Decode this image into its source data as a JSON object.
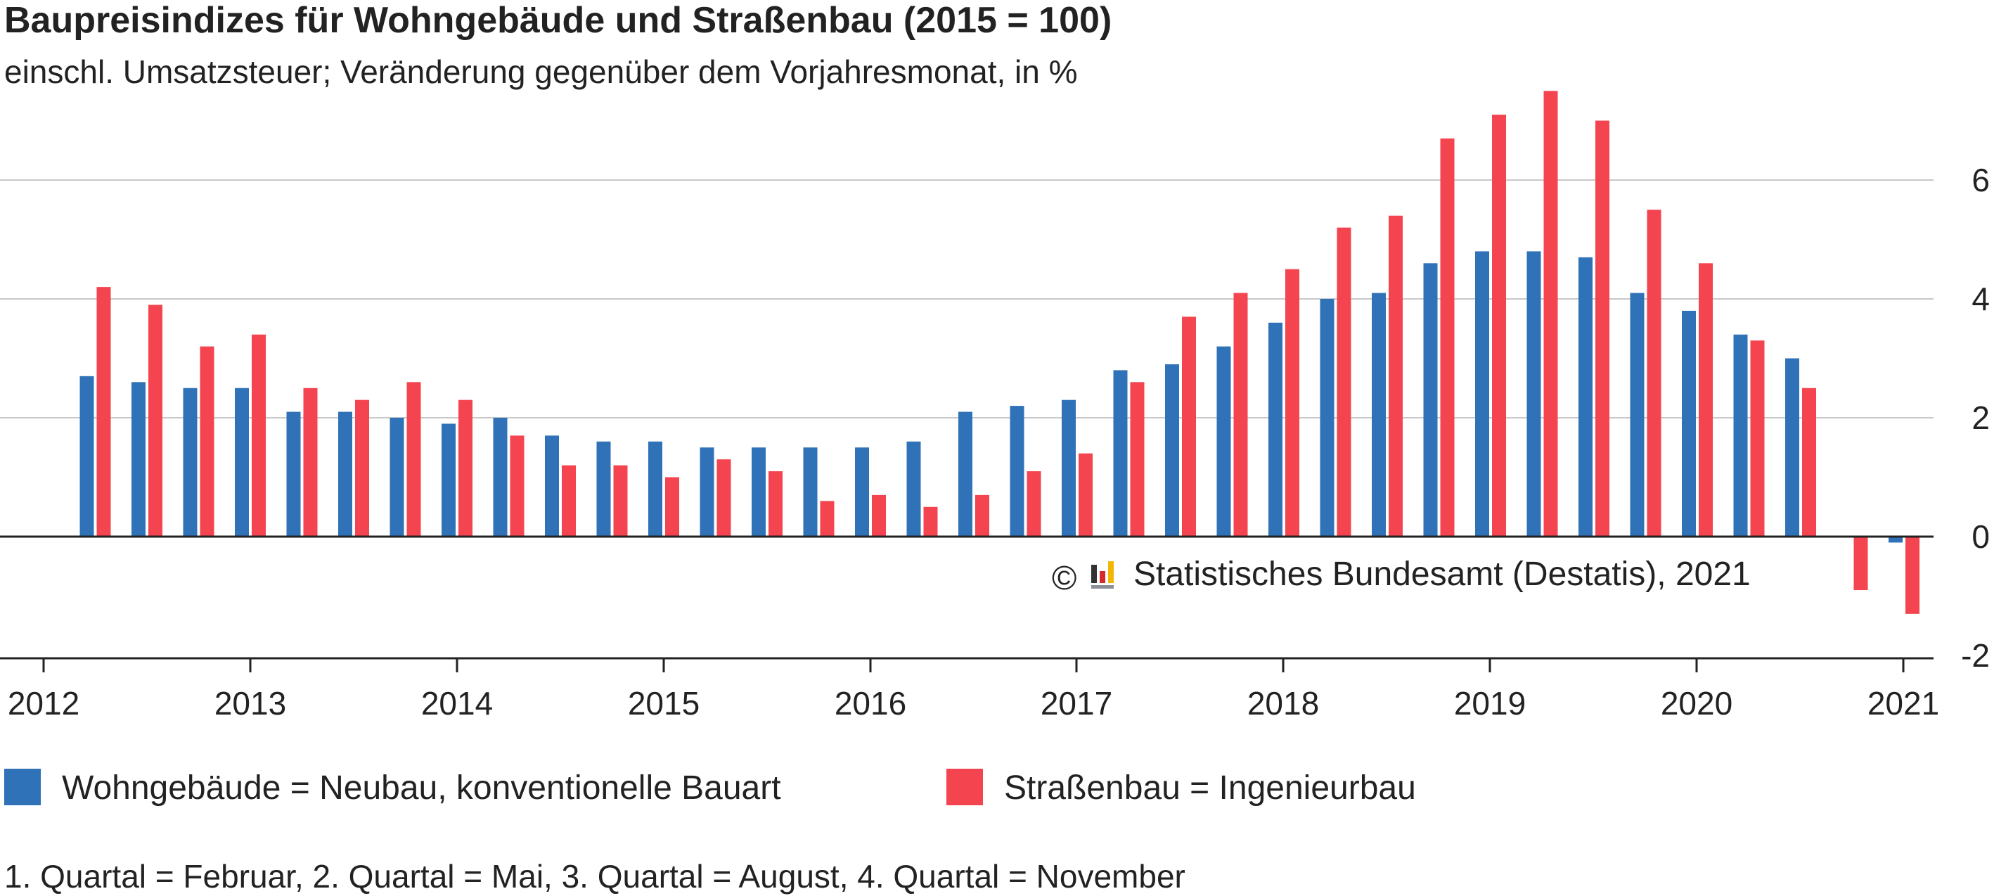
{
  "chart_data": {
    "type": "bar",
    "title": "Baupreisindizes für Wohngebäude und Straßenbau (2015 = 100)",
    "subtitle": "einschl. Umsatzsteuer; Veränderung gegenüber dem Vorjahresmonat, in %",
    "x_tick_labels": [
      "2012",
      "2013",
      "2014",
      "2015",
      "2016",
      "2017",
      "2018",
      "2019",
      "2020",
      "2021"
    ],
    "y_tick_labels": [
      "6",
      "4",
      "2",
      "0",
      "-2"
    ],
    "ylim": [
      -2,
      7.5
    ],
    "grid": true,
    "legend_position": "bottom",
    "categories": [
      "2012 Q2",
      "2012 Q3",
      "2012 Q4",
      "2013 Q1",
      "2013 Q2",
      "2013 Q3",
      "2013 Q4",
      "2014 Q1",
      "2014 Q2",
      "2014 Q3",
      "2014 Q4",
      "2015 Q1",
      "2015 Q2",
      "2015 Q3",
      "2015 Q4",
      "2016 Q1",
      "2016 Q2",
      "2016 Q3",
      "2016 Q4",
      "2017 Q1",
      "2017 Q2",
      "2017 Q3",
      "2017 Q4",
      "2018 Q1",
      "2018 Q2",
      "2018 Q3",
      "2018 Q4",
      "2019 Q1",
      "2019 Q2",
      "2019 Q3",
      "2019 Q4",
      "2020 Q1",
      "2020 Q2",
      "2020 Q3",
      "2020 Q4",
      "2021 Q1"
    ],
    "series": [
      {
        "name": "Wohngebäude = Neubau, konventionelle Bauart",
        "color": "#2f72b8",
        "values": [
          2.7,
          2.6,
          2.5,
          2.5,
          2.1,
          2.1,
          2.0,
          1.9,
          2.0,
          1.7,
          1.6,
          1.6,
          1.5,
          1.5,
          1.5,
          1.5,
          1.6,
          2.1,
          2.2,
          2.3,
          2.8,
          2.9,
          3.2,
          3.6,
          4.0,
          4.1,
          4.6,
          4.8,
          4.8,
          4.7,
          4.1,
          3.8,
          3.4,
          3.0,
          0.0,
          -0.1
        ]
      },
      {
        "name": "Straßenbau = Ingenieurbau",
        "color": "#f4444f",
        "values": [
          4.2,
          3.9,
          3.2,
          3.4,
          2.5,
          2.3,
          2.6,
          2.3,
          1.7,
          1.2,
          1.2,
          1.0,
          1.3,
          1.1,
          0.6,
          0.7,
          0.5,
          0.7,
          1.1,
          1.4,
          2.6,
          3.7,
          4.1,
          4.5,
          5.2,
          5.4,
          6.7,
          7.1,
          7.5,
          7.0,
          5.5,
          4.6,
          3.3,
          2.5,
          -0.9,
          -1.3
        ]
      }
    ],
    "annotations": [
      "1. Quartal = Februar, 2. Quartal = Mai, 3. Quartal = August, 4. Quartal = November"
    ],
    "source": "Statistisches Bundesamt (Destatis), 2021",
    "copyright_symbol": "©"
  }
}
